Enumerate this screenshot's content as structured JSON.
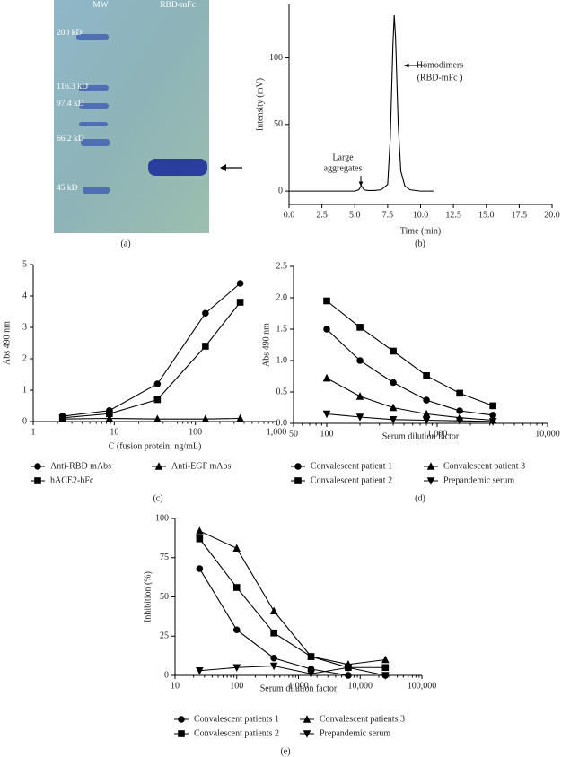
{
  "gel": {
    "lanes": [
      "MW",
      "RBD-mFc"
    ],
    "markers": [
      "200 kD",
      "116.3 kD",
      "97.4 kD",
      "66.2 kD",
      "45 kD"
    ],
    "panel_label": "(a)"
  },
  "chart_data": [
    {
      "type": "line",
      "panel_label": "(b)",
      "xlabel": "Time (min)",
      "ylabel": "Intensity (mV)",
      "xscale": "linear",
      "xlim": [
        0,
        20
      ],
      "xticks": [
        {
          "value": 0,
          "label": "0.0"
        },
        2.5,
        {
          "value": 5,
          "label": "5.0"
        },
        7.5,
        {
          "value": 10,
          "label": "10.0"
        },
        12.5,
        {
          "value": 15,
          "label": "15.0"
        },
        17.5,
        {
          "value": 20,
          "label": "20.0"
        }
      ],
      "ylim": [
        -10,
        140
      ],
      "yticks": [
        0,
        50,
        100
      ],
      "grid": false,
      "annotations": [
        "Large",
        "aggregates",
        "Homodimers",
        "(RBD-mFc )"
      ],
      "x": [
        0,
        5,
        5.3,
        5.5,
        5.7,
        6,
        6.5,
        7,
        7.5,
        7.7,
        7.9,
        8.0,
        8.1,
        8.3,
        8.5,
        8.8,
        9.2,
        10,
        11
      ],
      "series": [
        {
          "name": null,
          "color": "#000000",
          "marker": "none",
          "values": [
            0,
            0,
            1,
            4,
            1,
            0.5,
            0.5,
            1,
            5,
            40,
            110,
            132,
            115,
            50,
            15,
            4,
            1,
            0,
            0
          ]
        }
      ]
    },
    {
      "type": "line",
      "panel_label": "(c)",
      "xlabel": "C (fusion protein; ng/mL)",
      "ylabel": "Abs 490 nm",
      "xscale": "log",
      "xlim": [
        1,
        1000
      ],
      "xticks": [
        1,
        10,
        100,
        {
          "value": 1000,
          "label": "1,000"
        }
      ],
      "ylim": [
        0,
        5
      ],
      "yticks": [
        0,
        1,
        2,
        3,
        4,
        5
      ],
      "grid": false,
      "x": [
        2.3,
        8.7,
        34,
        133,
        357
      ],
      "series": [
        {
          "name": "Anti-RBD mAbs",
          "color": "#000000",
          "marker": "circle",
          "values": [
            0.17,
            0.35,
            1.2,
            3.45,
            4.4
          ]
        },
        {
          "name": "hACE2-hFc",
          "color": "#000000",
          "marker": "square",
          "values": [
            0.12,
            0.25,
            0.7,
            2.4,
            3.8
          ]
        },
        {
          "name": "Anti-EGF mAbs",
          "color": "#000000",
          "marker": "triangle",
          "values": [
            0.08,
            0.1,
            0.08,
            0.08,
            0.1
          ]
        }
      ]
    },
    {
      "type": "line",
      "panel_label": "(d)",
      "xlabel": "Serum dilution factor",
      "ylabel": "Abs 490 nm",
      "xscale": "log",
      "xlim": [
        50,
        10000
      ],
      "xticks": [
        50,
        100,
        {
          "value": 1000,
          "label": "1,000"
        },
        {
          "value": 10000,
          "label": "10,000"
        }
      ],
      "ylim": [
        0,
        2.5
      ],
      "yticks": [
        {
          "value": 0,
          "label": "0.0"
        },
        0.5,
        {
          "value": 1,
          "label": "1.0"
        },
        1.5,
        {
          "value": 2,
          "label": "2.0"
        },
        2.5
      ],
      "grid": false,
      "x": [
        100,
        200,
        400,
        800,
        1600,
        3200
      ],
      "series": [
        {
          "name": "Convalescent patient 1",
          "color": "#000000",
          "marker": "circle",
          "values": [
            1.5,
            1.0,
            0.65,
            0.37,
            0.2,
            0.13
          ]
        },
        {
          "name": "Convalescent patient 2",
          "color": "#000000",
          "marker": "square",
          "values": [
            1.95,
            1.53,
            1.15,
            0.76,
            0.48,
            0.28
          ]
        },
        {
          "name": "Convalescent patient 3",
          "color": "#000000",
          "marker": "triangle",
          "values": [
            0.72,
            0.43,
            0.25,
            0.15,
            0.09,
            0.05
          ]
        },
        {
          "name": "Prepandemic serum",
          "color": "#000000",
          "marker": "triangle-down",
          "values": [
            0.15,
            0.1,
            0.06,
            0.05,
            0.04,
            0.03
          ]
        }
      ]
    },
    {
      "type": "line",
      "panel_label": "(e)",
      "xlabel": "Serum dilution factor",
      "ylabel": "Inhibition (%)",
      "xscale": "log",
      "xlim": [
        10,
        100000
      ],
      "xticks": [
        10,
        100,
        {
          "value": 1000,
          "label": "1,000"
        },
        {
          "value": 10000,
          "label": "10,000"
        },
        {
          "value": 100000,
          "label": "100,000"
        }
      ],
      "ylim": [
        0,
        100
      ],
      "yticks": [
        0,
        25,
        50,
        75,
        100
      ],
      "grid": false,
      "x": [
        25,
        100,
        400,
        1600,
        6400,
        25600
      ],
      "series": [
        {
          "name": "Convalescent patients 1",
          "color": "#000000",
          "marker": "circle",
          "values": [
            68,
            29,
            11,
            4,
            0,
            0
          ]
        },
        {
          "name": "Convalescent patients 2",
          "color": "#000000",
          "marker": "square",
          "values": [
            87,
            56,
            27,
            12,
            5,
            5
          ]
        },
        {
          "name": "Convalescent patients 3",
          "color": "#000000",
          "marker": "triangle",
          "values": [
            92,
            81,
            41,
            12,
            7,
            10
          ]
        },
        {
          "name": "Prepandemic serum",
          "color": "#000000",
          "marker": "triangle-down",
          "values": [
            3,
            5,
            6,
            1,
            5,
            0
          ]
        }
      ]
    }
  ]
}
